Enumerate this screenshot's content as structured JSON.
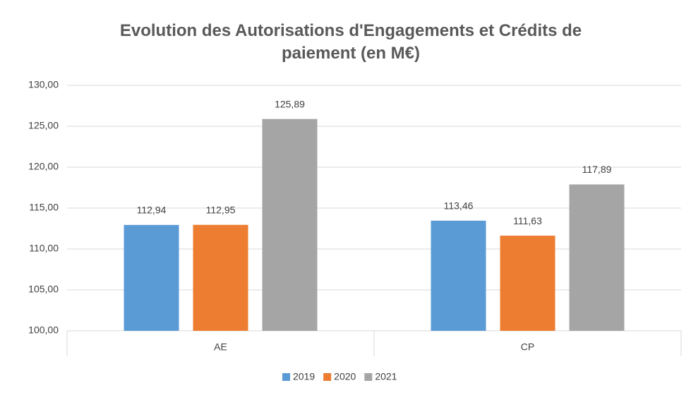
{
  "chart_data": {
    "type": "bar",
    "title": "Evolution des Autorisations d'Engagements et Crédits de paiement (en M€)",
    "categories": [
      "AE",
      "CP"
    ],
    "series": [
      {
        "name": "2019",
        "color": "#5b9bd5",
        "values": [
          112.94,
          113.46
        ],
        "value_labels": [
          "112,94",
          "113,46"
        ]
      },
      {
        "name": "2020",
        "color": "#ed7d31",
        "values": [
          112.95,
          111.63
        ],
        "value_labels": [
          "112,95",
          "111,63"
        ]
      },
      {
        "name": "2021",
        "color": "#a5a5a5",
        "values": [
          125.89,
          117.89
        ],
        "value_labels": [
          "125,89",
          "117,89"
        ]
      }
    ],
    "ylim": [
      100,
      130
    ],
    "yticks": [
      {
        "value": 100,
        "label": "100,00"
      },
      {
        "value": 105,
        "label": "105,00"
      },
      {
        "value": 110,
        "label": "110,00"
      },
      {
        "value": 115,
        "label": "115,00"
      },
      {
        "value": 120,
        "label": "120,00"
      },
      {
        "value": 125,
        "label": "125,00"
      },
      {
        "value": 130,
        "label": "130,00"
      }
    ],
    "grid": true,
    "legend": "bottom"
  }
}
